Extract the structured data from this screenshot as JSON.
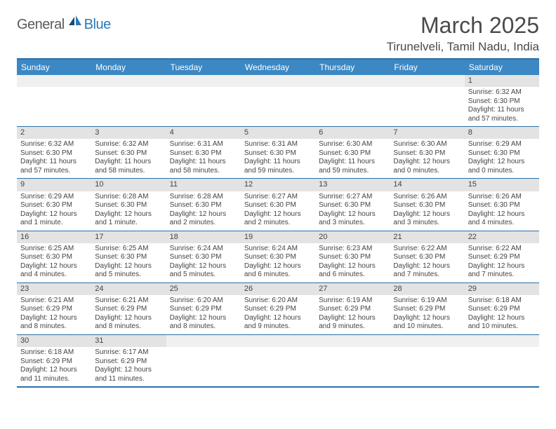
{
  "brand": {
    "part1": "General",
    "part2": "Blue"
  },
  "title": "March 2025",
  "location": "Tirunelveli, Tamil Nadu, India",
  "colors": {
    "header_bg": "#3b88c4",
    "header_text": "#ffffff",
    "border": "#2a6fa8",
    "daynum_bg": "#e3e3e3",
    "logo_blue": "#2a7ab8",
    "text": "#4a4a4a"
  },
  "day_headers": [
    "Sunday",
    "Monday",
    "Tuesday",
    "Wednesday",
    "Thursday",
    "Friday",
    "Saturday"
  ],
  "weeks": [
    [
      {
        "n": "",
        "sr": "",
        "ss": "",
        "dl": ""
      },
      {
        "n": "",
        "sr": "",
        "ss": "",
        "dl": ""
      },
      {
        "n": "",
        "sr": "",
        "ss": "",
        "dl": ""
      },
      {
        "n": "",
        "sr": "",
        "ss": "",
        "dl": ""
      },
      {
        "n": "",
        "sr": "",
        "ss": "",
        "dl": ""
      },
      {
        "n": "",
        "sr": "",
        "ss": "",
        "dl": ""
      },
      {
        "n": "1",
        "sr": "Sunrise: 6:32 AM",
        "ss": "Sunset: 6:30 PM",
        "dl": "Daylight: 11 hours and 57 minutes."
      }
    ],
    [
      {
        "n": "2",
        "sr": "Sunrise: 6:32 AM",
        "ss": "Sunset: 6:30 PM",
        "dl": "Daylight: 11 hours and 57 minutes."
      },
      {
        "n": "3",
        "sr": "Sunrise: 6:32 AM",
        "ss": "Sunset: 6:30 PM",
        "dl": "Daylight: 11 hours and 58 minutes."
      },
      {
        "n": "4",
        "sr": "Sunrise: 6:31 AM",
        "ss": "Sunset: 6:30 PM",
        "dl": "Daylight: 11 hours and 58 minutes."
      },
      {
        "n": "5",
        "sr": "Sunrise: 6:31 AM",
        "ss": "Sunset: 6:30 PM",
        "dl": "Daylight: 11 hours and 59 minutes."
      },
      {
        "n": "6",
        "sr": "Sunrise: 6:30 AM",
        "ss": "Sunset: 6:30 PM",
        "dl": "Daylight: 11 hours and 59 minutes."
      },
      {
        "n": "7",
        "sr": "Sunrise: 6:30 AM",
        "ss": "Sunset: 6:30 PM",
        "dl": "Daylight: 12 hours and 0 minutes."
      },
      {
        "n": "8",
        "sr": "Sunrise: 6:29 AM",
        "ss": "Sunset: 6:30 PM",
        "dl": "Daylight: 12 hours and 0 minutes."
      }
    ],
    [
      {
        "n": "9",
        "sr": "Sunrise: 6:29 AM",
        "ss": "Sunset: 6:30 PM",
        "dl": "Daylight: 12 hours and 1 minute."
      },
      {
        "n": "10",
        "sr": "Sunrise: 6:28 AM",
        "ss": "Sunset: 6:30 PM",
        "dl": "Daylight: 12 hours and 1 minute."
      },
      {
        "n": "11",
        "sr": "Sunrise: 6:28 AM",
        "ss": "Sunset: 6:30 PM",
        "dl": "Daylight: 12 hours and 2 minutes."
      },
      {
        "n": "12",
        "sr": "Sunrise: 6:27 AM",
        "ss": "Sunset: 6:30 PM",
        "dl": "Daylight: 12 hours and 2 minutes."
      },
      {
        "n": "13",
        "sr": "Sunrise: 6:27 AM",
        "ss": "Sunset: 6:30 PM",
        "dl": "Daylight: 12 hours and 3 minutes."
      },
      {
        "n": "14",
        "sr": "Sunrise: 6:26 AM",
        "ss": "Sunset: 6:30 PM",
        "dl": "Daylight: 12 hours and 3 minutes."
      },
      {
        "n": "15",
        "sr": "Sunrise: 6:26 AM",
        "ss": "Sunset: 6:30 PM",
        "dl": "Daylight: 12 hours and 4 minutes."
      }
    ],
    [
      {
        "n": "16",
        "sr": "Sunrise: 6:25 AM",
        "ss": "Sunset: 6:30 PM",
        "dl": "Daylight: 12 hours and 4 minutes."
      },
      {
        "n": "17",
        "sr": "Sunrise: 6:25 AM",
        "ss": "Sunset: 6:30 PM",
        "dl": "Daylight: 12 hours and 5 minutes."
      },
      {
        "n": "18",
        "sr": "Sunrise: 6:24 AM",
        "ss": "Sunset: 6:30 PM",
        "dl": "Daylight: 12 hours and 5 minutes."
      },
      {
        "n": "19",
        "sr": "Sunrise: 6:24 AM",
        "ss": "Sunset: 6:30 PM",
        "dl": "Daylight: 12 hours and 6 minutes."
      },
      {
        "n": "20",
        "sr": "Sunrise: 6:23 AM",
        "ss": "Sunset: 6:30 PM",
        "dl": "Daylight: 12 hours and 6 minutes."
      },
      {
        "n": "21",
        "sr": "Sunrise: 6:22 AM",
        "ss": "Sunset: 6:30 PM",
        "dl": "Daylight: 12 hours and 7 minutes."
      },
      {
        "n": "22",
        "sr": "Sunrise: 6:22 AM",
        "ss": "Sunset: 6:29 PM",
        "dl": "Daylight: 12 hours and 7 minutes."
      }
    ],
    [
      {
        "n": "23",
        "sr": "Sunrise: 6:21 AM",
        "ss": "Sunset: 6:29 PM",
        "dl": "Daylight: 12 hours and 8 minutes."
      },
      {
        "n": "24",
        "sr": "Sunrise: 6:21 AM",
        "ss": "Sunset: 6:29 PM",
        "dl": "Daylight: 12 hours and 8 minutes."
      },
      {
        "n": "25",
        "sr": "Sunrise: 6:20 AM",
        "ss": "Sunset: 6:29 PM",
        "dl": "Daylight: 12 hours and 8 minutes."
      },
      {
        "n": "26",
        "sr": "Sunrise: 6:20 AM",
        "ss": "Sunset: 6:29 PM",
        "dl": "Daylight: 12 hours and 9 minutes."
      },
      {
        "n": "27",
        "sr": "Sunrise: 6:19 AM",
        "ss": "Sunset: 6:29 PM",
        "dl": "Daylight: 12 hours and 9 minutes."
      },
      {
        "n": "28",
        "sr": "Sunrise: 6:19 AM",
        "ss": "Sunset: 6:29 PM",
        "dl": "Daylight: 12 hours and 10 minutes."
      },
      {
        "n": "29",
        "sr": "Sunrise: 6:18 AM",
        "ss": "Sunset: 6:29 PM",
        "dl": "Daylight: 12 hours and 10 minutes."
      }
    ],
    [
      {
        "n": "30",
        "sr": "Sunrise: 6:18 AM",
        "ss": "Sunset: 6:29 PM",
        "dl": "Daylight: 12 hours and 11 minutes."
      },
      {
        "n": "31",
        "sr": "Sunrise: 6:17 AM",
        "ss": "Sunset: 6:29 PM",
        "dl": "Daylight: 12 hours and 11 minutes."
      },
      {
        "n": "",
        "sr": "",
        "ss": "",
        "dl": ""
      },
      {
        "n": "",
        "sr": "",
        "ss": "",
        "dl": ""
      },
      {
        "n": "",
        "sr": "",
        "ss": "",
        "dl": ""
      },
      {
        "n": "",
        "sr": "",
        "ss": "",
        "dl": ""
      },
      {
        "n": "",
        "sr": "",
        "ss": "",
        "dl": ""
      }
    ]
  ]
}
